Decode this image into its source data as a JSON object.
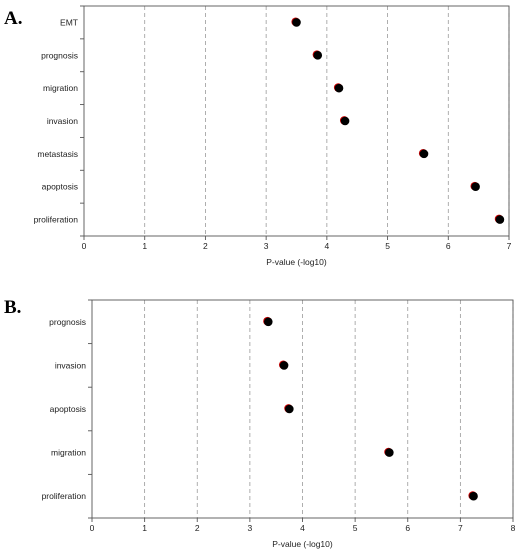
{
  "chart_data": [
    {
      "type": "scatter",
      "panel_label": "A.",
      "xlabel": "P-value (-log10)",
      "ylabel": "",
      "xlim": [
        0,
        7
      ],
      "x_ticks": [
        "0",
        "1",
        "2",
        "3",
        "4",
        "5",
        "6",
        "7"
      ],
      "grid": "vertical dashed",
      "categories": [
        "EMT",
        "prognosis",
        "migration",
        "invasion",
        "metastasis",
        "apoptosis",
        "proliferation"
      ],
      "values": [
        3.5,
        3.85,
        4.2,
        4.3,
        5.6,
        6.45,
        6.85
      ],
      "marker_color": "#000000",
      "marker_edge_color": "#cc0000"
    },
    {
      "type": "scatter",
      "panel_label": "B.",
      "xlabel": "P-value (-log10)",
      "ylabel": "",
      "xlim": [
        0,
        8
      ],
      "x_ticks": [
        "0",
        "1",
        "2",
        "3",
        "4",
        "5",
        "6",
        "7",
        "8"
      ],
      "grid": "vertical dashed",
      "categories": [
        "prognosis",
        "invasion",
        "apoptosis",
        "migration",
        "proliferation"
      ],
      "values": [
        3.35,
        3.65,
        3.75,
        5.65,
        7.25
      ],
      "marker_color": "#000000",
      "marker_edge_color": "#cc0000"
    }
  ]
}
